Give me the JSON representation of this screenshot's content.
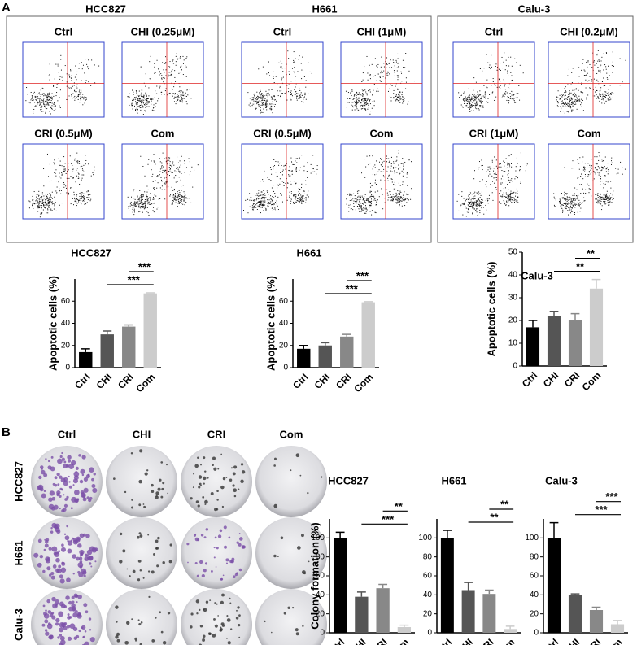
{
  "panel_labels": [
    "A",
    "B"
  ],
  "flow": [
    {
      "title": "HCC827",
      "panels": [
        "Ctrl",
        "CHI (0.25μM)",
        "CRI (0.5μM)",
        "Com"
      ]
    },
    {
      "title": "H661",
      "panels": [
        "Ctrl",
        "CHI (1μM)",
        "CRI (0.5μM)",
        "Com"
      ]
    },
    {
      "title": "Calu-3",
      "panels": [
        "Ctrl",
        "CHI (0.2μM)",
        "CRI (1μM)",
        "Com"
      ]
    }
  ],
  "colony": {
    "columns": [
      "Ctrl",
      "CHI",
      "CRI",
      "Com"
    ],
    "rows": [
      "HCC827",
      "H661",
      "Calu-3"
    ]
  },
  "chart_data": [
    {
      "type": "bar",
      "title": "HCC827",
      "ylabel": "Apoptotic cells (%)",
      "categories": [
        "Ctrl",
        "CHI",
        "CRI",
        "Com"
      ],
      "values": [
        14,
        30,
        37,
        67
      ],
      "errors": [
        3,
        3,
        1.5,
        0.5
      ],
      "colors": [
        "#000000",
        "#555555",
        "#888888",
        "#cccccc"
      ],
      "ylim": [
        0,
        80
      ],
      "yticks": [
        0,
        20,
        40,
        60
      ],
      "annotations": [
        "***",
        "***"
      ]
    },
    {
      "type": "bar",
      "title": "H661",
      "ylabel": "Apoptotic cells (%)",
      "categories": [
        "Ctrl",
        "CHI",
        "CRI",
        "Com"
      ],
      "values": [
        17,
        20,
        28,
        59
      ],
      "errors": [
        3,
        2.5,
        2,
        0.5
      ],
      "colors": [
        "#000000",
        "#555555",
        "#888888",
        "#cccccc"
      ],
      "ylim": [
        0,
        80
      ],
      "yticks": [
        0,
        20,
        40,
        60
      ],
      "annotations": [
        "***",
        "***"
      ]
    },
    {
      "type": "bar",
      "title": "Calu-3",
      "ylabel": "Apoptotic cells (%)",
      "categories": [
        "Ctrl",
        "CHI",
        "CRI",
        "Com"
      ],
      "values": [
        17,
        22,
        20,
        34
      ],
      "errors": [
        3,
        2,
        3,
        4
      ],
      "colors": [
        "#000000",
        "#555555",
        "#888888",
        "#cccccc"
      ],
      "ylim": [
        0,
        50
      ],
      "yticks": [
        0,
        10,
        20,
        30,
        40,
        50
      ],
      "annotations": [
        "**",
        "**"
      ]
    },
    {
      "type": "bar",
      "title": "HCC827",
      "ylabel": "Colony formation (%)",
      "categories": [
        "Ctrl",
        "CHI",
        "CRI",
        "Com"
      ],
      "values": [
        100,
        38,
        47,
        6
      ],
      "errors": [
        6,
        5,
        4,
        2
      ],
      "colors": [
        "#000000",
        "#555555",
        "#888888",
        "#cccccc"
      ],
      "ylim": [
        0,
        120
      ],
      "yticks": [
        0,
        20,
        40,
        60,
        80,
        100
      ],
      "annotations": [
        "**",
        "***"
      ]
    },
    {
      "type": "bar",
      "title": "H661",
      "categories": [
        "Ctrl",
        "CHI",
        "CRI",
        "Com"
      ],
      "values": [
        100,
        45,
        41,
        4
      ],
      "errors": [
        8,
        8,
        4,
        3
      ],
      "colors": [
        "#000000",
        "#555555",
        "#888888",
        "#cccccc"
      ],
      "ylim": [
        0,
        120
      ],
      "yticks": [
        0,
        20,
        40,
        60,
        80,
        100
      ],
      "annotations": [
        "**",
        "**"
      ]
    },
    {
      "type": "bar",
      "title": "Calu-3",
      "categories": [
        "Ctrl",
        "CHI",
        "CRI",
        "Com"
      ],
      "values": [
        100,
        40,
        24,
        9
      ],
      "errors": [
        16,
        1,
        3,
        4
      ],
      "colors": [
        "#000000",
        "#555555",
        "#888888",
        "#cccccc"
      ],
      "ylim": [
        0,
        120
      ],
      "yticks": [
        0,
        20,
        40,
        60,
        80,
        100
      ],
      "annotations": [
        "***",
        "***"
      ]
    }
  ]
}
